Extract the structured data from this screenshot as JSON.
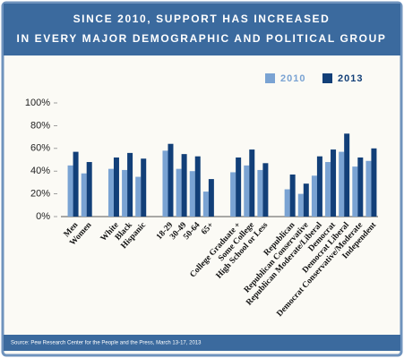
{
  "chart_data": {
    "type": "bar",
    "title": [
      "SINCE 2010, SUPPORT HAS INCREASED",
      "IN EVERY MAJOR DEMOGRAPHIC AND POLITICAL GROUP"
    ],
    "source": "Source: Pew Research Center for the People and the Press, March 13-17, 2013",
    "categories": [
      "Men",
      "Women",
      null,
      "White",
      "Black",
      "Hispanic",
      null,
      "18-29",
      "30-49",
      "50-64",
      "65+",
      null,
      "College Graduate +",
      "Some College",
      "High School or Less",
      null,
      "Republican",
      "Republican Conservative",
      "Republican Moderate/Liberal",
      "Democrat",
      "Democrat Liberal",
      "Democrat Conservative/Moderate",
      "Independent"
    ],
    "series": [
      {
        "name": "2010",
        "color": "#7aa3d3",
        "values": [
          45,
          38,
          null,
          42,
          41,
          35,
          null,
          58,
          42,
          40,
          22,
          null,
          39,
          45,
          41,
          null,
          24,
          20,
          36,
          48,
          57,
          44,
          49
        ]
      },
      {
        "name": "2013",
        "color": "#123f78",
        "values": [
          57,
          48,
          null,
          52,
          56,
          51,
          null,
          64,
          55,
          53,
          33,
          null,
          52,
          59,
          47,
          null,
          37,
          29,
          53,
          59,
          73,
          52,
          60
        ]
      }
    ],
    "ylim": [
      0,
      100
    ],
    "yticks": [
      {
        "value": 0,
        "label": "0%"
      },
      {
        "value": 20,
        "label": "20%"
      },
      {
        "value": 40,
        "label": "40%"
      },
      {
        "value": 60,
        "label": "60%"
      },
      {
        "value": 80,
        "label": "80%"
      },
      {
        "value": 100,
        "label": "100%"
      }
    ],
    "grid": false
  }
}
